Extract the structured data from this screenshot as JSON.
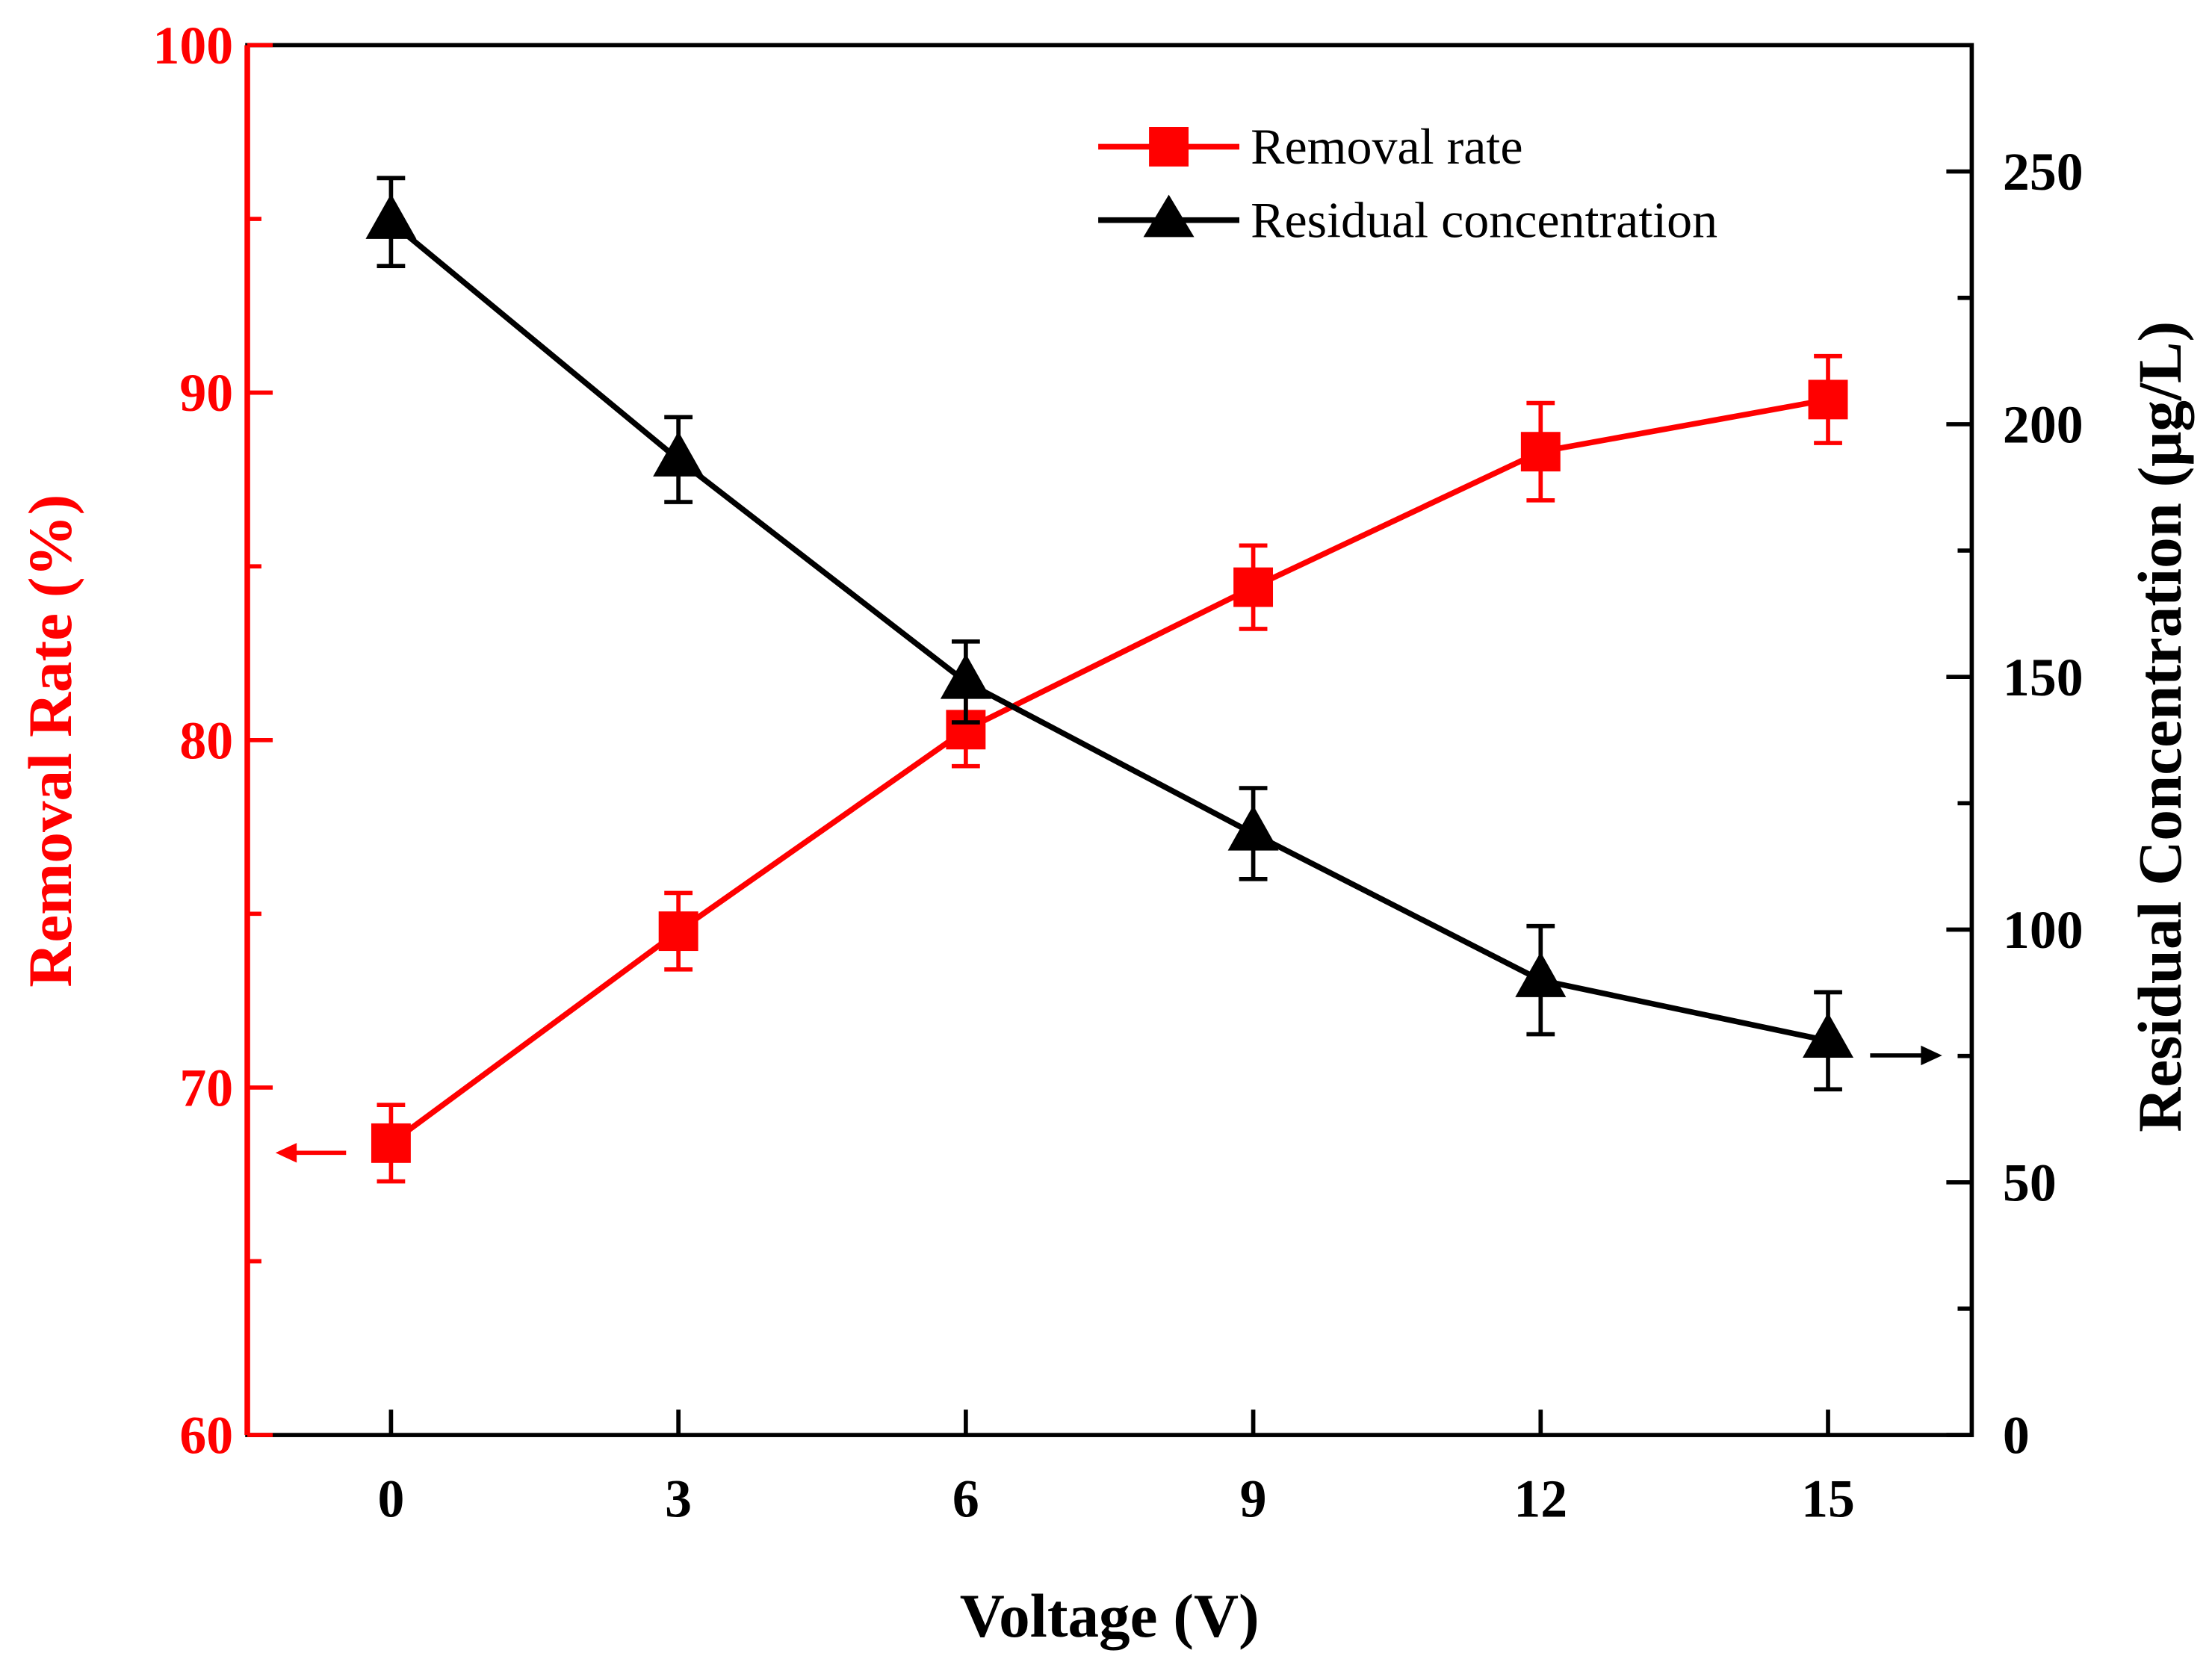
{
  "chart_data": {
    "type": "line",
    "title": "",
    "xlabel": "Voltage (V)",
    "ylabel_left": "Removal Rate (%)",
    "ylabel_right": "Residual Concentration (μg/L)",
    "x": [
      0,
      3,
      6,
      9,
      12,
      15
    ],
    "xticks": [
      "0",
      "3",
      "6",
      "9",
      "12",
      "15"
    ],
    "xlim": [
      -1.5,
      16.5
    ],
    "ylim_left": [
      60,
      100
    ],
    "yticks_left": [
      "60",
      "70",
      "80",
      "90",
      "100"
    ],
    "ylim_right": [
      0,
      275
    ],
    "yticks_right": [
      "0",
      "50",
      "100",
      "150",
      "200",
      "250"
    ],
    "legend_position": "top-right",
    "series": [
      {
        "name": "Removal rate",
        "axis": "left",
        "marker": "square",
        "color": "#ff0000",
        "values": [
          68.4,
          74.5,
          80.3,
          84.4,
          88.3,
          89.8
        ],
        "errors": [
          1.1,
          1.1,
          1.05,
          1.2,
          1.4,
          1.25
        ]
      },
      {
        "name": "Residual concentration",
        "axis": "right",
        "marker": "triangle",
        "color": "#000000",
        "values": [
          240,
          193,
          149,
          119,
          90,
          78
        ],
        "errors": [
          8.7,
          8.4,
          8,
          9,
          10.7,
          9.6
        ]
      }
    ]
  }
}
